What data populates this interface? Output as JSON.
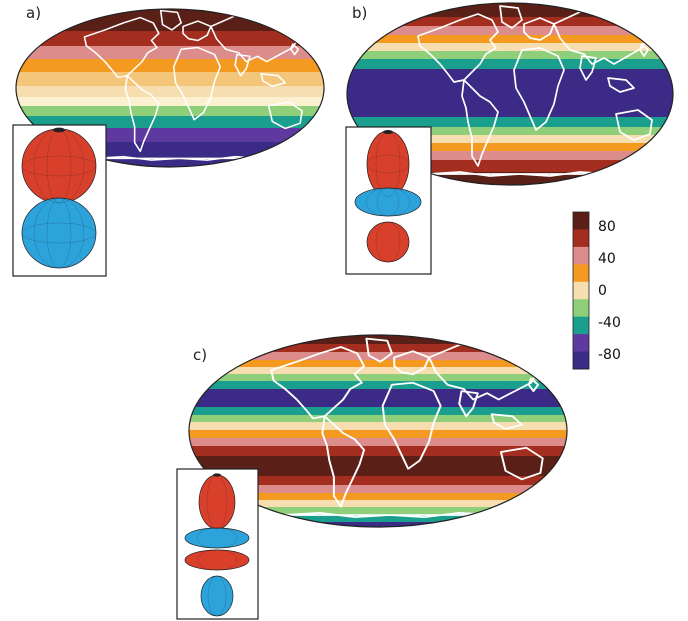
{
  "panels": [
    {
      "id": "a",
      "label": "a)",
      "degree": 1
    },
    {
      "id": "b",
      "label": "b)",
      "degree": 2
    },
    {
      "id": "c",
      "label": "c)",
      "degree": 3
    }
  ],
  "colorbar": {
    "ticks": [
      "80",
      "40",
      "0",
      "-40",
      "-80"
    ],
    "colors": [
      "#5a1f16",
      "#a32d1f",
      "#dd8c8c",
      "#f59a20",
      "#f6deb0",
      "#8fcf7a",
      "#1a9e8e",
      "#5e3aa0",
      "#3b2a86"
    ]
  },
  "colors": {
    "lobe_positive": "#d8402c",
    "lobe_negative": "#2da3dc",
    "coastline": "#ffffff"
  }
}
